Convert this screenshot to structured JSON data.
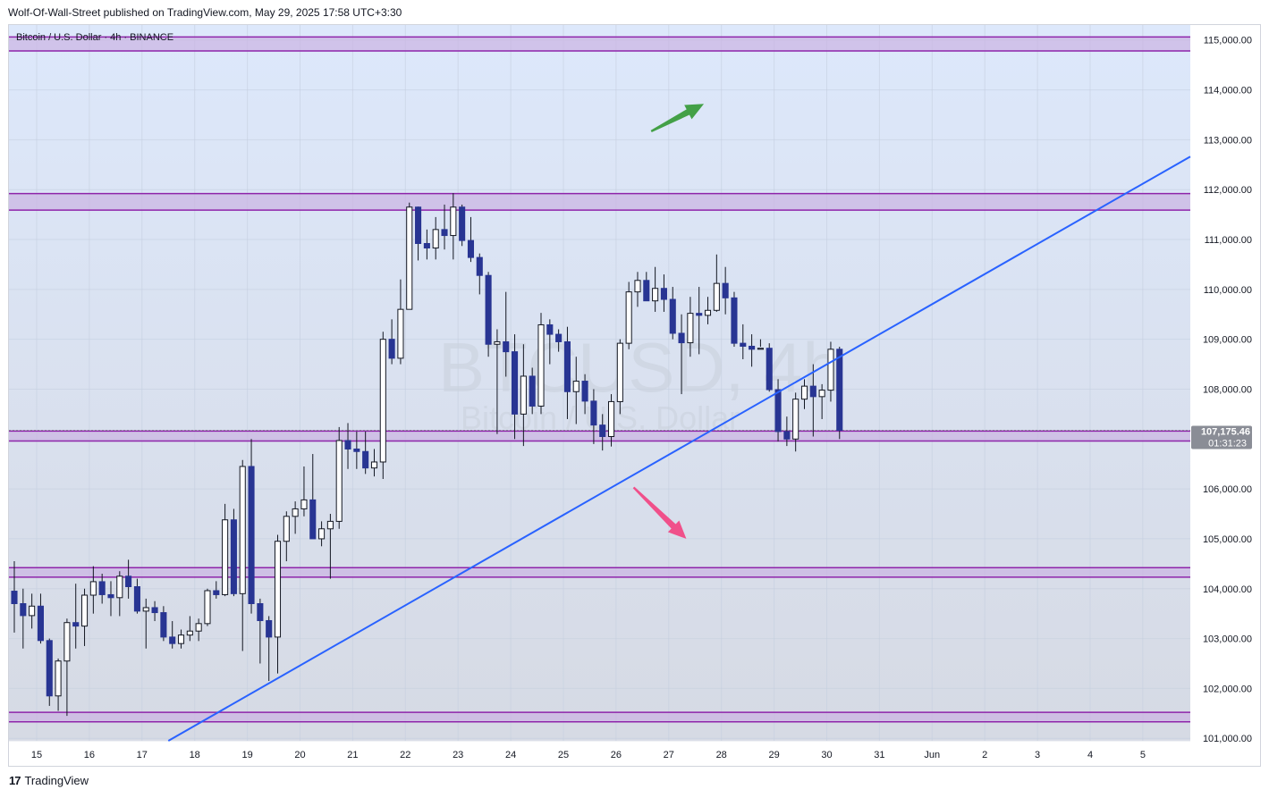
{
  "header": {
    "published": "Wolf-Of-Wall-Street published on TradingView.com, May 29, 2025 17:58 UTC+3:30"
  },
  "symbol_label": "Bitcoin / U.S. Dollar · 4h · BINANCE",
  "watermark": {
    "line1": "BTCUSD, 4h",
    "line2": "Bitcoin / U.S. Dollar"
  },
  "price_tag": {
    "price": "107,175.46",
    "countdown": "01:31:23"
  },
  "footer": {
    "brand": "TradingView",
    "logo": "17"
  },
  "colors": {
    "bg_top": "#dde8fb",
    "bg_bottom": "#d6dae4",
    "zone_fill": "#cbb3e3",
    "zone_stroke": "#8e24aa",
    "trendline": "#2962ff",
    "bear_candle": "#283593",
    "bull_candle": "#ffffff",
    "arrow_up": "#43a047",
    "arrow_down": "#f0508a",
    "price_tag_bg": "#8a8d96"
  },
  "chart_data": {
    "type": "candlestick",
    "symbol": "Bitcoin / U.S. Dollar",
    "timeframe": "4h",
    "exchange": "BINANCE",
    "x_tick_labels": [
      "15",
      "16",
      "17",
      "18",
      "19",
      "20",
      "21",
      "22",
      "23",
      "24",
      "25",
      "26",
      "27",
      "28",
      "29",
      "30",
      "31",
      "Jun",
      "2",
      "3",
      "4",
      "5"
    ],
    "y_tick_labels": [
      "115,000.00",
      "114,000.00",
      "113,000.00",
      "112,000.00",
      "111,000.00",
      "110,000.00",
      "109,000.00",
      "108,000.00",
      "107,000.00",
      "106,000.00",
      "105,000.00",
      "104,000.00",
      "103,000.00",
      "102,000.00",
      "101,000.00"
    ],
    "ylim": [
      100950,
      115300
    ],
    "last_price": 107175.46,
    "zones": [
      {
        "low": 114780,
        "high": 115060
      },
      {
        "low": 111590,
        "high": 111920
      },
      {
        "low": 106960,
        "high": 107160
      },
      {
        "low": 104230,
        "high": 104420
      },
      {
        "low": 101330,
        "high": 101520
      }
    ],
    "trendline": [
      {
        "time": "May 17 12:00",
        "price": 100950
      },
      {
        "time": "May 29 15:00",
        "price": 108270
      }
    ],
    "arrows": [
      {
        "direction": "up",
        "from": {
          "time": "May 26 16:00",
          "price": 113170
        },
        "to": {
          "time": "May 27 16:00",
          "price": 113720
        }
      },
      {
        "direction": "down",
        "from": {
          "time": "May 26 08:00",
          "price": 106030
        },
        "to": {
          "time": "May 27 08:00",
          "price": 105000
        }
      }
    ],
    "candles": [
      {
        "o": 103950,
        "h": 104550,
        "l": 103120,
        "c": 103700
      },
      {
        "o": 103700,
        "h": 104000,
        "l": 102800,
        "c": 103460
      },
      {
        "o": 103460,
        "h": 103900,
        "l": 103200,
        "c": 103650
      },
      {
        "o": 103650,
        "h": 103900,
        "l": 102900,
        "c": 102960
      },
      {
        "o": 102960,
        "h": 103000,
        "l": 101650,
        "c": 101850
      },
      {
        "o": 101850,
        "h": 102600,
        "l": 101550,
        "c": 102550
      },
      {
        "o": 102550,
        "h": 103400,
        "l": 101450,
        "c": 103320
      },
      {
        "o": 103320,
        "h": 104100,
        "l": 102800,
        "c": 103250
      },
      {
        "o": 103250,
        "h": 104000,
        "l": 102850,
        "c": 103870
      },
      {
        "o": 103870,
        "h": 104450,
        "l": 103500,
        "c": 104140
      },
      {
        "o": 104140,
        "h": 104300,
        "l": 103700,
        "c": 103880
      },
      {
        "o": 103880,
        "h": 104150,
        "l": 103450,
        "c": 103820
      },
      {
        "o": 103820,
        "h": 104350,
        "l": 103450,
        "c": 104250
      },
      {
        "o": 104250,
        "h": 104580,
        "l": 103800,
        "c": 104040
      },
      {
        "o": 104040,
        "h": 104200,
        "l": 103500,
        "c": 103550
      },
      {
        "o": 103550,
        "h": 103800,
        "l": 102800,
        "c": 103620
      },
      {
        "o": 103620,
        "h": 103750,
        "l": 103350,
        "c": 103520
      },
      {
        "o": 103520,
        "h": 103650,
        "l": 102950,
        "c": 103030
      },
      {
        "o": 103030,
        "h": 103350,
        "l": 102800,
        "c": 102900
      },
      {
        "o": 102900,
        "h": 103180,
        "l": 102800,
        "c": 103070
      },
      {
        "o": 103070,
        "h": 103450,
        "l": 102950,
        "c": 103150
      },
      {
        "o": 103150,
        "h": 103400,
        "l": 102950,
        "c": 103300
      },
      {
        "o": 103300,
        "h": 104000,
        "l": 103250,
        "c": 103960
      },
      {
        "o": 103960,
        "h": 104150,
        "l": 103800,
        "c": 103880
      },
      {
        "o": 103880,
        "h": 105700,
        "l": 103850,
        "c": 105380
      },
      {
        "o": 105380,
        "h": 105600,
        "l": 103850,
        "c": 103900
      },
      {
        "o": 103900,
        "h": 106580,
        "l": 102750,
        "c": 106450
      },
      {
        "o": 106450,
        "h": 107000,
        "l": 103500,
        "c": 103700
      },
      {
        "o": 103700,
        "h": 103800,
        "l": 102500,
        "c": 103360
      },
      {
        "o": 103360,
        "h": 103450,
        "l": 102150,
        "c": 103030
      },
      {
        "o": 103030,
        "h": 105080,
        "l": 102300,
        "c": 104950
      },
      {
        "o": 104950,
        "h": 105550,
        "l": 104550,
        "c": 105450
      },
      {
        "o": 105450,
        "h": 105750,
        "l": 105100,
        "c": 105600
      },
      {
        "o": 105600,
        "h": 106450,
        "l": 105450,
        "c": 105780
      },
      {
        "o": 105780,
        "h": 106700,
        "l": 105000,
        "c": 105000
      },
      {
        "o": 105000,
        "h": 105350,
        "l": 104850,
        "c": 105200
      },
      {
        "o": 105200,
        "h": 105500,
        "l": 104200,
        "c": 105350
      },
      {
        "o": 105350,
        "h": 107240,
        "l": 105200,
        "c": 106970
      },
      {
        "o": 106970,
        "h": 107320,
        "l": 106400,
        "c": 106800
      },
      {
        "o": 106800,
        "h": 107150,
        "l": 106400,
        "c": 106750
      },
      {
        "o": 106750,
        "h": 107150,
        "l": 106300,
        "c": 106420
      },
      {
        "o": 106420,
        "h": 106800,
        "l": 106250,
        "c": 106540
      },
      {
        "o": 106540,
        "h": 109150,
        "l": 106200,
        "c": 109000
      },
      {
        "o": 109000,
        "h": 109400,
        "l": 108500,
        "c": 108620
      },
      {
        "o": 108620,
        "h": 110200,
        "l": 108500,
        "c": 109600
      },
      {
        "o": 109600,
        "h": 111740,
        "l": 109600,
        "c": 111650
      },
      {
        "o": 111650,
        "h": 111660,
        "l": 110580,
        "c": 110920
      },
      {
        "o": 110920,
        "h": 111200,
        "l": 110600,
        "c": 110830
      },
      {
        "o": 110830,
        "h": 111450,
        "l": 110600,
        "c": 111200
      },
      {
        "o": 111200,
        "h": 111700,
        "l": 110800,
        "c": 111080
      },
      {
        "o": 111080,
        "h": 111930,
        "l": 110600,
        "c": 111650
      },
      {
        "o": 111650,
        "h": 111700,
        "l": 110870,
        "c": 110980
      },
      {
        "o": 110980,
        "h": 111450,
        "l": 110550,
        "c": 110640
      },
      {
        "o": 110640,
        "h": 110720,
        "l": 109900,
        "c": 110280
      },
      {
        "o": 110280,
        "h": 110350,
        "l": 108650,
        "c": 108900
      },
      {
        "o": 108900,
        "h": 109200,
        "l": 107100,
        "c": 108950
      },
      {
        "o": 108950,
        "h": 109950,
        "l": 108250,
        "c": 108750
      },
      {
        "o": 108750,
        "h": 109100,
        "l": 107000,
        "c": 107500
      },
      {
        "o": 107500,
        "h": 108900,
        "l": 106860,
        "c": 108260
      },
      {
        "o": 108260,
        "h": 108430,
        "l": 107500,
        "c": 107660
      },
      {
        "o": 107660,
        "h": 109530,
        "l": 107500,
        "c": 109290
      },
      {
        "o": 109290,
        "h": 109400,
        "l": 108500,
        "c": 109100
      },
      {
        "o": 109100,
        "h": 109200,
        "l": 108750,
        "c": 108950
      },
      {
        "o": 108950,
        "h": 109250,
        "l": 107400,
        "c": 107950
      },
      {
        "o": 107950,
        "h": 108650,
        "l": 107300,
        "c": 108160
      },
      {
        "o": 108160,
        "h": 108300,
        "l": 107500,
        "c": 107760
      },
      {
        "o": 107760,
        "h": 108000,
        "l": 106900,
        "c": 107280
      },
      {
        "o": 107280,
        "h": 107500,
        "l": 106770,
        "c": 107050
      },
      {
        "o": 107050,
        "h": 107900,
        "l": 106850,
        "c": 107750
      },
      {
        "o": 107750,
        "h": 109000,
        "l": 107500,
        "c": 108920
      },
      {
        "o": 108920,
        "h": 110150,
        "l": 108800,
        "c": 109950
      },
      {
        "o": 109950,
        "h": 110350,
        "l": 109650,
        "c": 110180
      },
      {
        "o": 110180,
        "h": 110350,
        "l": 109800,
        "c": 109770
      },
      {
        "o": 109770,
        "h": 110450,
        "l": 109550,
        "c": 110020
      },
      {
        "o": 110020,
        "h": 110300,
        "l": 109550,
        "c": 109800
      },
      {
        "o": 109800,
        "h": 110050,
        "l": 109000,
        "c": 109120
      },
      {
        "o": 109120,
        "h": 109500,
        "l": 107900,
        "c": 108930
      },
      {
        "o": 108930,
        "h": 109850,
        "l": 108650,
        "c": 109520
      },
      {
        "o": 109520,
        "h": 110050,
        "l": 108700,
        "c": 109480
      },
      {
        "o": 109480,
        "h": 109850,
        "l": 109300,
        "c": 109580
      },
      {
        "o": 109580,
        "h": 110700,
        "l": 109550,
        "c": 110120
      },
      {
        "o": 110120,
        "h": 110450,
        "l": 109500,
        "c": 109830
      },
      {
        "o": 109830,
        "h": 109950,
        "l": 108850,
        "c": 108920
      },
      {
        "o": 108920,
        "h": 109300,
        "l": 108600,
        "c": 108860
      },
      {
        "o": 108860,
        "h": 109100,
        "l": 108450,
        "c": 108800
      },
      {
        "o": 108800,
        "h": 109000,
        "l": 108850,
        "c": 108820
      },
      {
        "o": 108820,
        "h": 108920,
        "l": 107950,
        "c": 107990
      },
      {
        "o": 107990,
        "h": 108200,
        "l": 106950,
        "c": 107150
      },
      {
        "o": 107150,
        "h": 107450,
        "l": 106860,
        "c": 107000
      },
      {
        "o": 107000,
        "h": 107930,
        "l": 106750,
        "c": 107800
      },
      {
        "o": 107800,
        "h": 108200,
        "l": 107600,
        "c": 108060
      },
      {
        "o": 108060,
        "h": 108500,
        "l": 107050,
        "c": 107850
      },
      {
        "o": 107850,
        "h": 108100,
        "l": 107400,
        "c": 107980
      },
      {
        "o": 107980,
        "h": 108950,
        "l": 107750,
        "c": 108800
      },
      {
        "o": 108800,
        "h": 108850,
        "l": 107000,
        "c": 107175
      }
    ]
  }
}
